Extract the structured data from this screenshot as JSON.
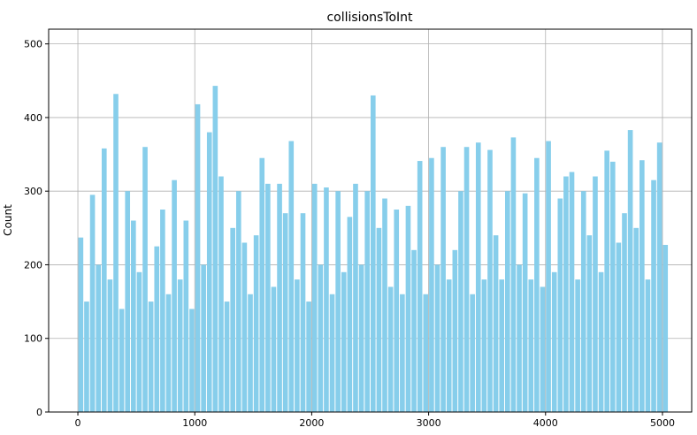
{
  "chart_data": {
    "type": "bar",
    "title": "collisionsToInt",
    "xlabel": "",
    "ylabel": "Count",
    "xlim": [
      -250,
      5250
    ],
    "ylim": [
      0,
      520
    ],
    "xticks": [
      0,
      1000,
      2000,
      3000,
      4000,
      5000
    ],
    "yticks": [
      0,
      100,
      200,
      300,
      400,
      500
    ],
    "grid": true,
    "bar_color": "#87ceeb",
    "x": [
      0,
      50,
      100,
      150,
      200,
      250,
      300,
      350,
      400,
      450,
      500,
      550,
      600,
      650,
      700,
      750,
      800,
      850,
      900,
      950,
      1000,
      1050,
      1100,
      1150,
      1200,
      1250,
      1300,
      1350,
      1400,
      1450,
      1500,
      1550,
      1600,
      1650,
      1700,
      1750,
      1800,
      1850,
      1900,
      1950,
      2000,
      2050,
      2100,
      2150,
      2200,
      2250,
      2300,
      2350,
      2400,
      2450,
      2500,
      2550,
      2600,
      2650,
      2700,
      2750,
      2800,
      2850,
      2900,
      2950,
      3000,
      3050,
      3100,
      3150,
      3200,
      3250,
      3300,
      3350,
      3400,
      3450,
      3500,
      3550,
      3600,
      3650,
      3700,
      3750,
      3800,
      3850,
      3900,
      3950,
      4000,
      4050,
      4100,
      4150,
      4200,
      4250,
      4300,
      4350,
      4400,
      4450,
      4500,
      4550,
      4600,
      4650,
      4700,
      4750,
      4800,
      4850,
      4900,
      4950,
      5000
    ],
    "values": [
      237,
      150,
      295,
      200,
      358,
      180,
      432,
      140,
      300,
      260,
      190,
      360,
      150,
      225,
      275,
      160,
      315,
      180,
      260,
      140,
      418,
      200,
      380,
      443,
      320,
      150,
      250,
      300,
      230,
      160,
      240,
      345,
      310,
      170,
      310,
      270,
      368,
      180,
      270,
      150,
      310,
      200,
      305,
      160,
      300,
      190,
      265,
      310,
      200,
      300,
      430,
      250,
      290,
      170,
      275,
      160,
      280,
      220,
      341,
      160,
      345,
      200,
      360,
      180,
      220,
      300,
      360,
      160,
      366,
      180,
      356,
      240,
      180,
      300,
      373,
      200,
      297,
      180,
      345,
      170,
      368,
      190,
      290,
      320,
      326,
      180,
      300,
      240,
      320,
      190,
      355,
      340,
      230,
      270,
      383,
      250,
      342,
      180,
      315,
      366,
      227
    ]
  }
}
